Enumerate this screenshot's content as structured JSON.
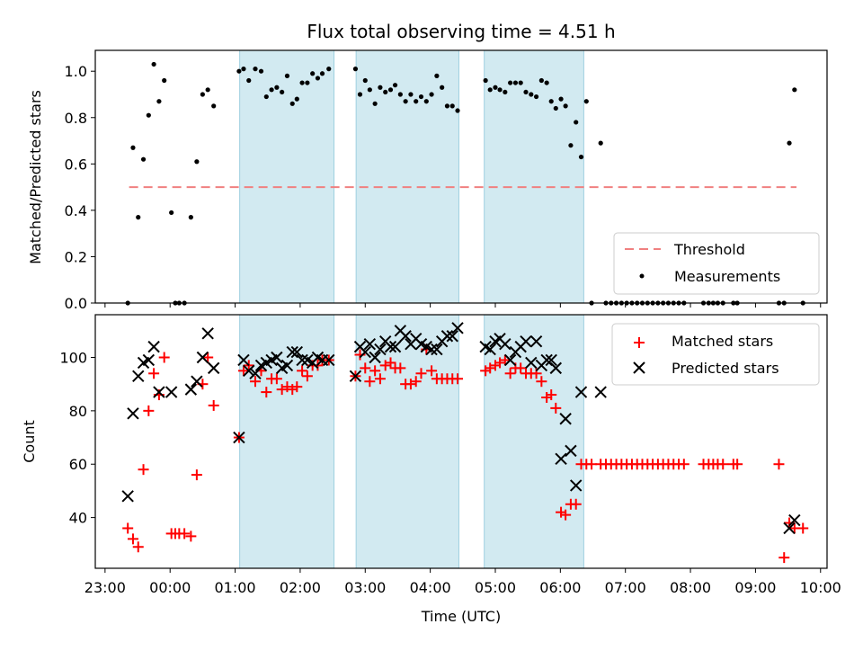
{
  "title": "Flux total observing time = 4.51 h",
  "chart_data": [
    {
      "type": "scatter",
      "ylabel": "Matched/Predicted stars",
      "ylim": [
        0,
        1.09
      ],
      "xlim_hours": [
        -1.15,
        10.1
      ],
      "yticks": [
        0.0,
        0.2,
        0.4,
        0.6,
        0.8,
        1.0
      ],
      "ytick_labels": [
        "0.0",
        "0.2",
        "0.4",
        "0.6",
        "0.8",
        "1.0"
      ],
      "threshold": {
        "name": "Threshold",
        "value": 0.5,
        "x_range": [
          -0.63,
          9.63
        ],
        "color": "#f08080"
      },
      "legend": [
        {
          "label": "Threshold",
          "marker": "dash",
          "color": "#f08080"
        },
        {
          "label": "Measurements",
          "marker": "dot",
          "color": "#000000"
        }
      ],
      "legend_position": "bottom-right",
      "series": [
        {
          "name": "Measurements",
          "color": "#000000",
          "x": [
            -0.65,
            -0.57,
            -0.49,
            -0.41,
            -0.33,
            -0.25,
            -0.17,
            -0.09,
            0.02,
            0.08,
            0.14,
            0.22,
            0.32,
            0.41,
            0.5,
            0.58,
            0.67,
            1.06,
            1.13,
            1.21,
            1.31,
            1.4,
            1.48,
            1.56,
            1.64,
            1.72,
            1.8,
            1.88,
            1.95,
            2.03,
            2.11,
            2.19,
            2.27,
            2.34,
            2.44,
            2.85,
            2.92,
            3.0,
            3.07,
            3.15,
            3.23,
            3.31,
            3.39,
            3.46,
            3.54,
            3.62,
            3.7,
            3.78,
            3.86,
            3.94,
            4.02,
            4.1,
            4.18,
            4.26,
            4.34,
            4.42,
            4.85,
            4.92,
            5.0,
            5.07,
            5.15,
            5.23,
            5.31,
            5.39,
            5.47,
            5.55,
            5.63,
            5.71,
            5.79,
            5.86,
            5.93,
            6.01,
            6.08,
            6.16,
            6.24,
            6.32,
            6.4,
            6.48,
            6.62,
            6.7,
            6.78,
            6.86,
            6.94,
            7.02,
            7.1,
            7.18,
            7.26,
            7.34,
            7.42,
            7.5,
            7.58,
            7.66,
            7.74,
            7.82,
            7.9,
            8.2,
            8.28,
            8.35,
            8.42,
            8.5,
            8.66,
            8.72,
            9.36,
            9.44,
            9.52,
            9.6,
            9.73
          ],
          "y": [
            0.0,
            0.67,
            0.37,
            0.62,
            0.81,
            1.03,
            0.87,
            0.96,
            0.39,
            0.0,
            0.0,
            0.0,
            0.37,
            0.61,
            0.9,
            0.92,
            0.85,
            1.0,
            1.01,
            0.96,
            1.01,
            1.0,
            0.89,
            0.92,
            0.93,
            0.91,
            0.98,
            0.86,
            0.88,
            0.95,
            0.95,
            0.99,
            0.97,
            0.99,
            1.01,
            1.01,
            0.9,
            0.96,
            0.92,
            0.86,
            0.93,
            0.91,
            0.92,
            0.94,
            0.9,
            0.87,
            0.9,
            0.87,
            0.89,
            0.87,
            0.9,
            0.98,
            0.93,
            0.85,
            0.85,
            0.83,
            0.96,
            0.92,
            0.93,
            0.92,
            0.91,
            0.95,
            0.95,
            0.95,
            0.91,
            0.9,
            0.89,
            0.96,
            0.95,
            0.87,
            0.84,
            0.88,
            0.85,
            0.68,
            0.78,
            0.63,
            0.87,
            0.0,
            0.69,
            0.0,
            0.0,
            0.0,
            0.0,
            0.0,
            0.0,
            0.0,
            0.0,
            0.0,
            0.0,
            0.0,
            0.0,
            0.0,
            0.0,
            0.0,
            0.0,
            0.0,
            0.0,
            0.0,
            0.0,
            0.0,
            0.0,
            0.0,
            0.0,
            0.0,
            0.69,
            0.92,
            0.0
          ]
        }
      ]
    },
    {
      "type": "scatter",
      "ylabel": "Count",
      "xlabel": "Time (UTC)",
      "ylim": [
        21,
        116
      ],
      "xlim_hours": [
        -1.15,
        10.1
      ],
      "yticks": [
        40,
        60,
        80,
        100
      ],
      "ytick_labels": [
        "40",
        "60",
        "80",
        "100"
      ],
      "xticks_hours": [
        -1,
        0,
        1,
        2,
        3,
        4,
        5,
        6,
        7,
        8,
        9,
        10
      ],
      "xtick_labels": [
        "23:00",
        "00:00",
        "01:00",
        "02:00",
        "03:00",
        "04:00",
        "05:00",
        "06:00",
        "07:00",
        "08:00",
        "09:00",
        "10:00"
      ],
      "legend": [
        {
          "label": "Matched stars",
          "marker": "plus",
          "color": "#ff0000"
        },
        {
          "label": "Predicted stars",
          "marker": "x",
          "color": "#000000"
        }
      ],
      "legend_position": "top-right",
      "series": [
        {
          "name": "Matched stars",
          "marker": "plus",
          "color": "#ff0000",
          "x": [
            -0.65,
            -0.57,
            -0.49,
            -0.41,
            -0.33,
            -0.25,
            -0.17,
            -0.09,
            0.02,
            0.08,
            0.14,
            0.22,
            0.32,
            0.41,
            0.5,
            0.58,
            0.67,
            1.06,
            1.13,
            1.21,
            1.31,
            1.4,
            1.48,
            1.56,
            1.64,
            1.72,
            1.8,
            1.88,
            1.95,
            2.03,
            2.11,
            2.19,
            2.27,
            2.34,
            2.44,
            2.85,
            2.92,
            3.0,
            3.07,
            3.15,
            3.23,
            3.31,
            3.39,
            3.46,
            3.54,
            3.62,
            3.7,
            3.78,
            3.86,
            3.94,
            4.02,
            4.1,
            4.18,
            4.26,
            4.34,
            4.42,
            4.85,
            4.92,
            5.0,
            5.07,
            5.15,
            5.23,
            5.31,
            5.39,
            5.47,
            5.55,
            5.63,
            5.71,
            5.79,
            5.86,
            5.93,
            6.01,
            6.08,
            6.16,
            6.24,
            6.32,
            6.4,
            6.48,
            6.62,
            6.7,
            6.78,
            6.86,
            6.94,
            7.02,
            7.1,
            7.18,
            7.26,
            7.34,
            7.42,
            7.5,
            7.58,
            7.66,
            7.74,
            7.82,
            7.9,
            8.2,
            8.28,
            8.35,
            8.42,
            8.5,
            8.66,
            8.72,
            9.36,
            9.44,
            9.52,
            9.6,
            9.73
          ],
          "y": [
            36,
            32,
            29,
            58,
            80,
            94,
            86,
            100,
            34,
            34,
            34,
            34,
            33,
            56,
            90,
            100,
            82,
            70,
            95,
            97,
            91,
            95,
            87,
            92,
            92,
            88,
            89,
            88,
            89,
            95,
            93,
            97,
            97,
            99,
            99,
            93,
            101,
            96,
            91,
            95,
            92,
            97,
            98,
            96,
            96,
            90,
            90,
            91,
            94,
            103,
            95,
            92,
            92,
            92,
            92,
            92,
            95,
            96,
            97,
            98,
            99,
            94,
            96,
            96,
            94,
            94,
            94,
            91,
            85,
            86,
            81,
            42,
            41,
            45,
            45,
            60,
            60,
            60,
            60,
            60,
            60,
            60,
            60,
            60,
            60,
            60,
            60,
            60,
            60,
            60,
            60,
            60,
            60,
            60,
            60,
            60,
            60,
            60,
            60,
            60,
            60,
            60,
            60,
            25,
            38,
            36,
            36
          ]
        },
        {
          "name": "Predicted stars",
          "marker": "x",
          "color": "#000000",
          "x": [
            -0.65,
            -0.57,
            -0.49,
            -0.41,
            -0.33,
            -0.25,
            -0.17,
            0.02,
            0.32,
            0.41,
            0.5,
            0.58,
            0.67,
            1.06,
            1.13,
            1.21,
            1.31,
            1.4,
            1.48,
            1.56,
            1.64,
            1.72,
            1.8,
            1.88,
            1.95,
            2.03,
            2.11,
            2.19,
            2.27,
            2.34,
            2.44,
            2.85,
            2.92,
            3.0,
            3.07,
            3.15,
            3.23,
            3.31,
            3.39,
            3.46,
            3.54,
            3.62,
            3.7,
            3.78,
            3.86,
            3.94,
            4.02,
            4.1,
            4.18,
            4.26,
            4.34,
            4.42,
            4.85,
            4.92,
            5.0,
            5.07,
            5.15,
            5.23,
            5.31,
            5.39,
            5.47,
            5.55,
            5.63,
            5.71,
            5.79,
            5.86,
            5.93,
            6.01,
            6.08,
            6.16,
            6.24,
            6.32,
            6.62,
            9.52,
            9.6
          ],
          "y": [
            48,
            79,
            93,
            98,
            99,
            104,
            87,
            87,
            88,
            91,
            100,
            109,
            96,
            70,
            99,
            95,
            94,
            97,
            98,
            99,
            100,
            96,
            97,
            102,
            102,
            99,
            99,
            98,
            100,
            99,
            99,
            93,
            104,
            102,
            105,
            100,
            103,
            106,
            104,
            104,
            110,
            108,
            105,
            107,
            105,
            104,
            103,
            103,
            106,
            108,
            108,
            111,
            104,
            103,
            106,
            107,
            105,
            99,
            102,
            104,
            106,
            98,
            106,
            97,
            99,
            99,
            96,
            62,
            77,
            65,
            52,
            87,
            87,
            36,
            39
          ]
        }
      ]
    }
  ],
  "shaded_intervals_hours": [
    [
      1.07,
      2.52
    ],
    [
      2.86,
      4.44
    ],
    [
      4.83,
      6.36
    ]
  ],
  "colors": {
    "shade": "#add8e6",
    "threshold": "#f08080",
    "matched": "#ff0000",
    "predicted": "#000000"
  }
}
